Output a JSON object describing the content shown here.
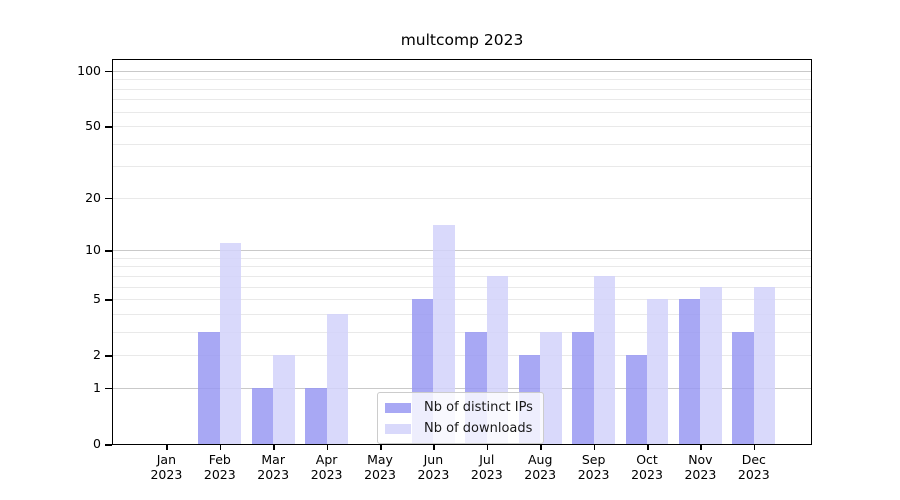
{
  "chart_data": {
    "type": "bar",
    "title": "multcomp 2023",
    "scale": "log1p",
    "categories": [
      "Jan",
      "Feb",
      "Mar",
      "Apr",
      "May",
      "Jun",
      "Jul",
      "Aug",
      "Sep",
      "Oct",
      "Nov",
      "Dec"
    ],
    "category_year": "2023",
    "series": [
      {
        "name": "Nb of distinct IPs",
        "color": "#9999f2",
        "alpha": 0.85,
        "values": [
          0,
          3,
          1,
          1,
          0,
          5,
          3,
          2,
          3,
          2,
          5,
          3
        ]
      },
      {
        "name": "Nb of downloads",
        "color": "#d2d2fa",
        "alpha": 0.85,
        "values": [
          0,
          11,
          2,
          4,
          0,
          14,
          7,
          3,
          7,
          5,
          6,
          6
        ]
      }
    ],
    "y_axis": {
      "tick_values": [
        0,
        1,
        2,
        5,
        10,
        20,
        50,
        100
      ],
      "tick_labels": [
        "0",
        "1",
        "2",
        "5",
        "10",
        "20",
        "50",
        "100"
      ],
      "gridline_values": [
        1,
        2,
        3,
        4,
        5,
        6,
        7,
        8,
        9,
        10,
        20,
        30,
        40,
        50,
        60,
        70,
        80,
        90,
        100
      ],
      "major_gridline_values": [
        1,
        10,
        100
      ],
      "ylim": [
        0,
        115
      ]
    },
    "legend": {
      "position": "lower-center",
      "entries": [
        "Nb of distinct IPs",
        "Nb of downloads"
      ]
    },
    "grid": true
  },
  "colors": {
    "major_grid": "#c9c9c9",
    "minor_grid": "#e9e9e9",
    "spine": "#000000",
    "text": "#000000",
    "legend_border": "#cccccc",
    "legend_bg": "rgba(255,255,255,0.8)"
  }
}
